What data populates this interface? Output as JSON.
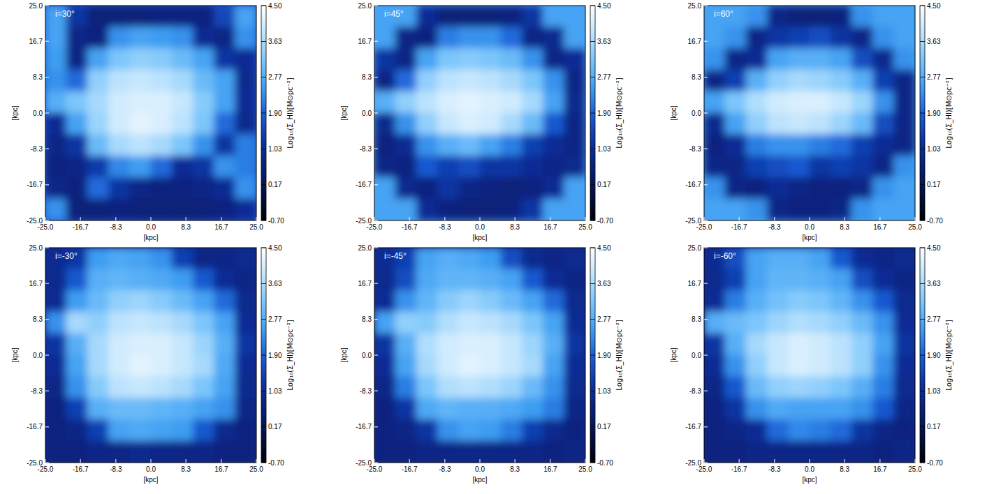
{
  "chart_data": [
    {
      "type": "heatmap",
      "title": "i=30°",
      "xlabel": "[kpc]",
      "ylabel": "[kpc]",
      "xlim": [
        -25,
        25
      ],
      "ylim": [
        -25,
        25
      ],
      "xticks": [
        {
          "value": -25,
          "label": "-25.0"
        },
        -16.7,
        -8.3,
        {
          "value": 0,
          "label": "0.0"
        },
        8.3,
        16.7,
        {
          "value": 25,
          "label": "25.0"
        }
      ],
      "yticks": [
        {
          "value": -25,
          "label": "-25.0"
        },
        -16.7,
        -8.3,
        {
          "value": 0,
          "label": "0.0"
        },
        8.3,
        16.7,
        {
          "value": 25,
          "label": "25.0"
        }
      ],
      "colorbar_label": "Log₁₀(Σ_HI)[M⊙pc⁻²]",
      "color_range": [
        -0.7,
        4.5
      ],
      "color_ticks": [
        {
          "value": -0.7,
          "label": "-0.70"
        },
        0.17,
        1.03,
        {
          "value": 1.9,
          "label": "1.90"
        },
        2.77,
        3.63,
        {
          "value": 4.5,
          "label": "4.50"
        }
      ],
      "cells": [
        [
          2.6,
          1.2,
          0.6,
          0.6,
          0.6,
          0.7,
          0.7,
          0.7,
          1.5,
          2.6
        ],
        [
          2.6,
          0.8,
          0.7,
          2.4,
          2.6,
          2.5,
          2.4,
          1.0,
          0.8,
          2.4
        ],
        [
          2.5,
          0.8,
          2.6,
          3.2,
          3.4,
          3.3,
          3.0,
          2.6,
          1.2,
          1.0
        ],
        [
          2.4,
          2.0,
          3.4,
          3.8,
          3.9,
          3.8,
          3.6,
          3.0,
          2.6,
          0.9
        ],
        [
          2.8,
          3.2,
          3.6,
          4.0,
          4.1,
          4.1,
          3.9,
          3.3,
          2.6,
          1.0
        ],
        [
          1.0,
          2.6,
          3.5,
          4.0,
          4.2,
          4.1,
          3.8,
          3.2,
          2.0,
          0.9
        ],
        [
          0.8,
          1.2,
          3.0,
          3.6,
          3.8,
          3.6,
          3.2,
          2.4,
          1.2,
          2.2
        ],
        [
          0.7,
          0.8,
          1.3,
          2.3,
          2.5,
          2.0,
          1.0,
          1.2,
          2.4,
          2.2
        ],
        [
          0.8,
          0.7,
          2.0,
          1.2,
          0.8,
          0.7,
          0.7,
          0.8,
          1.0,
          2.4
        ],
        [
          2.4,
          0.6,
          0.6,
          0.7,
          0.6,
          0.6,
          0.6,
          0.6,
          0.7,
          1.0
        ]
      ]
    },
    {
      "type": "heatmap",
      "title": "i=45°",
      "xlabel": "[kpc]",
      "ylabel": "[kpc]",
      "xlim": [
        -25,
        25
      ],
      "ylim": [
        -25,
        25
      ],
      "xticks": [
        {
          "value": -25,
          "label": "-25.0"
        },
        -16.7,
        -8.3,
        {
          "value": 0,
          "label": "0.0"
        },
        8.3,
        16.7,
        {
          "value": 25,
          "label": "25.0"
        }
      ],
      "yticks": [
        {
          "value": -25,
          "label": "-25.0"
        },
        -16.7,
        -8.3,
        {
          "value": 0,
          "label": "0.0"
        },
        8.3,
        16.7,
        {
          "value": 25,
          "label": "25.0"
        }
      ],
      "colorbar_label": "Log₁₀(Σ_HI)[M⊙pc⁻²]",
      "color_range": [
        -0.7,
        4.5
      ],
      "color_ticks": [
        {
          "value": -0.7,
          "label": "-0.70"
        },
        0.17,
        1.03,
        {
          "value": 1.9,
          "label": "1.90"
        },
        2.77,
        3.63,
        {
          "value": 4.5,
          "label": "4.50"
        }
      ],
      "cells": [
        [
          2.6,
          2.6,
          1.0,
          0.6,
          0.6,
          0.6,
          0.7,
          1.2,
          2.6,
          2.6
        ],
        [
          2.6,
          0.8,
          0.7,
          2.2,
          2.4,
          2.4,
          2.0,
          0.8,
          0.9,
          2.6
        ],
        [
          1.2,
          0.8,
          2.6,
          3.2,
          3.3,
          3.2,
          3.0,
          2.4,
          0.8,
          1.0
        ],
        [
          0.8,
          2.0,
          3.4,
          3.8,
          3.9,
          3.8,
          3.6,
          3.2,
          2.4,
          0.8
        ],
        [
          2.8,
          3.4,
          3.8,
          4.1,
          4.2,
          4.1,
          4.0,
          3.6,
          2.6,
          0.9
        ],
        [
          0.9,
          2.4,
          3.4,
          3.9,
          4.1,
          4.0,
          3.6,
          3.0,
          1.8,
          0.8
        ],
        [
          0.7,
          1.0,
          2.4,
          2.8,
          3.0,
          2.6,
          2.2,
          1.4,
          1.0,
          0.8
        ],
        [
          0.8,
          0.7,
          1.8,
          1.4,
          1.6,
          1.2,
          1.2,
          1.0,
          0.8,
          0.9
        ],
        [
          2.6,
          0.9,
          0.7,
          1.2,
          0.8,
          0.7,
          0.6,
          0.7,
          1.0,
          2.6
        ],
        [
          2.6,
          2.6,
          1.0,
          0.7,
          0.6,
          0.6,
          0.7,
          1.2,
          2.6,
          2.6
        ]
      ]
    },
    {
      "type": "heatmap",
      "title": "i=60°",
      "xlabel": "[kpc]",
      "ylabel": "[kpc]",
      "xlim": [
        -25,
        25
      ],
      "ylim": [
        -25,
        25
      ],
      "xticks": [
        {
          "value": -25,
          "label": "-25.0"
        },
        -16.7,
        -8.3,
        {
          "value": 0,
          "label": "0.0"
        },
        8.3,
        16.7,
        {
          "value": 25,
          "label": "25.0"
        }
      ],
      "yticks": [
        {
          "value": -25,
          "label": "-25.0"
        },
        -16.7,
        -8.3,
        {
          "value": 0,
          "label": "0.0"
        },
        8.3,
        16.7,
        {
          "value": 25,
          "label": "25.0"
        }
      ],
      "colorbar_label": "Log₁₀(Σ_HI)[M⊙pc⁻²]",
      "color_range": [
        -0.7,
        4.5
      ],
      "color_ticks": [
        {
          "value": -0.7,
          "label": "-0.70"
        },
        0.17,
        1.03,
        {
          "value": 1.9,
          "label": "1.90"
        },
        2.77,
        3.63,
        {
          "value": 4.5,
          "label": "4.50"
        }
      ],
      "cells": [
        [
          2.6,
          2.6,
          2.4,
          0.8,
          0.6,
          0.6,
          0.7,
          2.4,
          2.6,
          2.6
        ],
        [
          2.6,
          2.4,
          0.8,
          1.2,
          1.4,
          1.6,
          1.2,
          0.8,
          2.4,
          2.6
        ],
        [
          2.4,
          0.8,
          1.0,
          2.6,
          2.8,
          2.8,
          2.6,
          1.6,
          0.9,
          2.4
        ],
        [
          0.8,
          1.4,
          2.8,
          3.4,
          3.6,
          3.5,
          3.3,
          2.8,
          1.4,
          0.8
        ],
        [
          2.6,
          3.2,
          3.7,
          4.0,
          4.1,
          4.1,
          3.9,
          3.5,
          2.4,
          0.8
        ],
        [
          0.9,
          2.6,
          3.4,
          3.8,
          3.9,
          3.8,
          3.5,
          3.0,
          1.6,
          0.8
        ],
        [
          0.7,
          1.0,
          2.2,
          2.4,
          2.4,
          2.2,
          2.0,
          1.4,
          1.0,
          0.8
        ],
        [
          0.8,
          0.8,
          1.4,
          1.6,
          1.8,
          1.2,
          1.4,
          1.2,
          0.8,
          2.4
        ],
        [
          2.4,
          0.8,
          0.7,
          1.0,
          0.8,
          0.7,
          0.7,
          0.8,
          2.4,
          2.6
        ],
        [
          2.6,
          2.6,
          2.4,
          0.8,
          0.7,
          0.7,
          0.8,
          2.4,
          2.6,
          2.6
        ]
      ]
    },
    {
      "type": "heatmap",
      "title": "i=-30°",
      "xlabel": "[kpc]",
      "ylabel": "[kpc]",
      "xlim": [
        -25,
        25
      ],
      "ylim": [
        -25,
        25
      ],
      "xticks": [
        {
          "value": -25,
          "label": "-25.0"
        },
        -16.7,
        -8.3,
        {
          "value": 0,
          "label": "0.0"
        },
        8.3,
        16.7,
        {
          "value": 25,
          "label": "25.0"
        }
      ],
      "yticks": [
        {
          "value": -25,
          "label": "-25.0"
        },
        -16.7,
        -8.3,
        {
          "value": 0,
          "label": "0.0"
        },
        8.3,
        16.7,
        {
          "value": 25,
          "label": "25.0"
        }
      ],
      "colorbar_label": "Log₁₀(Σ_HI)[M⊙pc⁻²]",
      "color_range": [
        -0.7,
        4.5
      ],
      "color_ticks": [
        {
          "value": -0.7,
          "label": "-0.70"
        },
        0.17,
        1.03,
        {
          "value": 1.9,
          "label": "1.90"
        },
        2.77,
        3.63,
        {
          "value": 4.5,
          "label": "4.50"
        }
      ],
      "cells": [
        [
          1.0,
          1.2,
          2.5,
          2.7,
          2.6,
          2.4,
          1.4,
          0.8,
          0.8,
          0.9
        ],
        [
          0.9,
          1.8,
          2.8,
          2.9,
          2.8,
          2.7,
          2.5,
          1.8,
          1.0,
          0.8
        ],
        [
          1.0,
          2.5,
          3.0,
          3.4,
          3.5,
          3.3,
          3.0,
          2.6,
          2.0,
          0.9
        ],
        [
          2.4,
          3.6,
          3.4,
          3.8,
          3.9,
          3.8,
          3.6,
          3.2,
          2.6,
          1.0
        ],
        [
          1.2,
          2.8,
          3.6,
          4.0,
          4.1,
          4.1,
          3.9,
          3.5,
          2.8,
          1.2
        ],
        [
          1.0,
          2.6,
          3.6,
          4.0,
          4.2,
          4.1,
          3.9,
          3.6,
          2.7,
          1.0
        ],
        [
          0.8,
          2.4,
          3.3,
          3.8,
          3.9,
          3.8,
          3.6,
          3.2,
          2.6,
          0.9
        ],
        [
          0.7,
          1.4,
          2.8,
          3.0,
          3.0,
          2.9,
          2.8,
          2.6,
          2.4,
          0.8
        ],
        [
          0.7,
          0.8,
          1.4,
          2.6,
          2.7,
          2.6,
          2.5,
          1.8,
          0.9,
          0.7
        ],
        [
          0.7,
          0.7,
          0.8,
          0.8,
          0.9,
          0.8,
          0.8,
          0.8,
          0.7,
          0.7
        ]
      ]
    },
    {
      "type": "heatmap",
      "title": "i=-45°",
      "xlabel": "[kpc]",
      "ylabel": "[kpc]",
      "xlim": [
        -25,
        25
      ],
      "ylim": [
        -25,
        25
      ],
      "xticks": [
        {
          "value": -25,
          "label": "-25.0"
        },
        -16.7,
        -8.3,
        {
          "value": 0,
          "label": "0.0"
        },
        8.3,
        16.7,
        {
          "value": 25,
          "label": "25.0"
        }
      ],
      "yticks": [
        {
          "value": -25,
          "label": "-25.0"
        },
        -16.7,
        -8.3,
        {
          "value": 0,
          "label": "0.0"
        },
        8.3,
        16.7,
        {
          "value": 25,
          "label": "25.0"
        }
      ],
      "colorbar_label": "Log₁₀(Σ_HI)[M⊙pc⁻²]",
      "color_range": [
        -0.7,
        4.5
      ],
      "color_ticks": [
        {
          "value": -0.7,
          "label": "-0.70"
        },
        0.17,
        1.03,
        {
          "value": 1.9,
          "label": "1.90"
        },
        2.77,
        3.63,
        {
          "value": 4.5,
          "label": "4.50"
        }
      ],
      "cells": [
        [
          1.0,
          1.4,
          2.6,
          2.8,
          2.7,
          2.5,
          1.6,
          0.9,
          0.8,
          0.9
        ],
        [
          0.9,
          1.6,
          2.7,
          2.9,
          2.9,
          2.8,
          2.6,
          1.8,
          1.0,
          0.8
        ],
        [
          1.0,
          2.4,
          2.9,
          3.3,
          3.5,
          3.3,
          3.0,
          2.6,
          2.0,
          0.9
        ],
        [
          2.6,
          3.4,
          3.3,
          3.7,
          3.9,
          3.8,
          3.6,
          3.2,
          2.6,
          1.0
        ],
        [
          1.2,
          2.8,
          3.7,
          4.0,
          4.1,
          4.1,
          3.9,
          3.5,
          2.8,
          1.2
        ],
        [
          1.0,
          2.6,
          3.6,
          4.0,
          4.2,
          4.1,
          3.9,
          3.6,
          2.6,
          1.0
        ],
        [
          0.8,
          2.2,
          3.2,
          3.7,
          3.8,
          3.7,
          3.5,
          3.0,
          2.4,
          0.9
        ],
        [
          0.7,
          1.2,
          2.7,
          2.9,
          2.8,
          2.8,
          2.7,
          2.5,
          2.2,
          0.8
        ],
        [
          0.7,
          0.8,
          1.2,
          2.4,
          2.6,
          2.5,
          2.2,
          1.4,
          0.9,
          0.7
        ],
        [
          0.7,
          0.7,
          0.8,
          0.8,
          0.8,
          0.8,
          0.8,
          0.8,
          0.7,
          0.8
        ]
      ]
    },
    {
      "type": "heatmap",
      "title": "i=-60°",
      "xlabel": "[kpc]",
      "ylabel": "[kpc]",
      "xlim": [
        -25,
        25
      ],
      "ylim": [
        -25,
        25
      ],
      "xticks": [
        {
          "value": -25,
          "label": "-25.0"
        },
        -16.7,
        -8.3,
        {
          "value": 0,
          "label": "0.0"
        },
        8.3,
        16.7,
        {
          "value": 25,
          "label": "25.0"
        }
      ],
      "yticks": [
        {
          "value": -25,
          "label": "-25.0"
        },
        -16.7,
        -8.3,
        {
          "value": 0,
          "label": "0.0"
        },
        8.3,
        16.7,
        {
          "value": 25,
          "label": "25.0"
        }
      ],
      "colorbar_label": "Log₁₀(Σ_HI)[M⊙pc⁻²]",
      "color_range": [
        -0.7,
        4.5
      ],
      "color_ticks": [
        {
          "value": -0.7,
          "label": "-0.70"
        },
        0.17,
        1.03,
        {
          "value": 1.9,
          "label": "1.90"
        },
        2.77,
        3.63,
        {
          "value": 4.5,
          "label": "4.50"
        }
      ],
      "cells": [
        [
          1.0,
          1.6,
          2.6,
          2.8,
          2.8,
          2.6,
          1.8,
          1.0,
          0.8,
          0.9
        ],
        [
          0.9,
          1.4,
          2.6,
          2.9,
          2.9,
          2.8,
          2.6,
          1.6,
          1.0,
          0.8
        ],
        [
          1.0,
          2.2,
          2.8,
          3.1,
          3.3,
          3.2,
          2.9,
          2.4,
          1.8,
          0.9
        ],
        [
          2.8,
          3.0,
          3.2,
          3.5,
          3.7,
          3.6,
          3.4,
          3.0,
          2.4,
          1.0
        ],
        [
          1.2,
          2.8,
          3.6,
          3.9,
          4.1,
          4.0,
          3.8,
          3.4,
          2.6,
          1.2
        ],
        [
          1.0,
          2.4,
          3.4,
          3.9,
          4.1,
          4.0,
          3.8,
          3.4,
          2.4,
          1.0
        ],
        [
          0.8,
          1.8,
          3.0,
          3.4,
          3.5,
          3.4,
          3.2,
          2.8,
          2.2,
          0.9
        ],
        [
          0.7,
          1.2,
          2.4,
          2.7,
          2.6,
          2.6,
          2.6,
          2.4,
          1.8,
          0.8
        ],
        [
          0.7,
          0.8,
          1.0,
          2.0,
          2.3,
          2.2,
          2.0,
          1.2,
          0.8,
          0.7
        ],
        [
          0.7,
          0.7,
          0.8,
          0.8,
          0.8,
          0.8,
          0.8,
          0.8,
          0.7,
          0.8
        ]
      ]
    }
  ]
}
